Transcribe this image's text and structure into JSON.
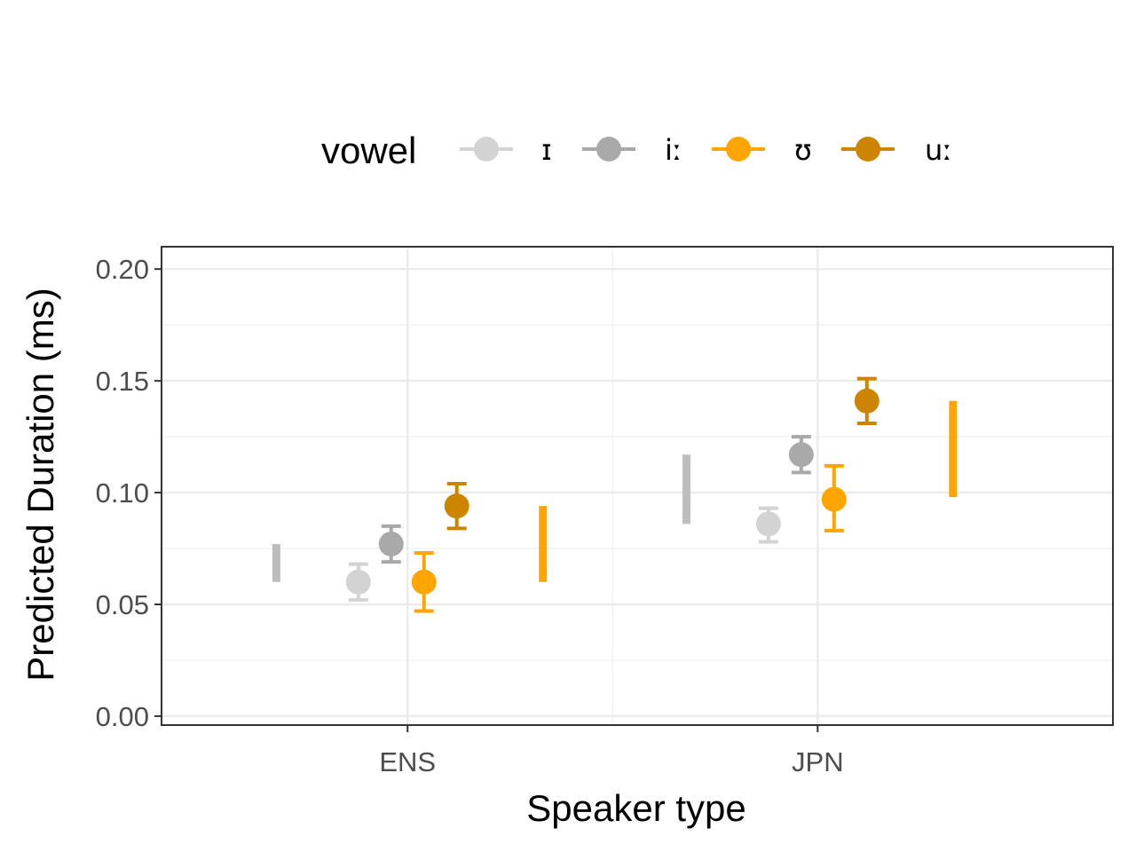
{
  "chart_data": {
    "type": "scatter",
    "xlabel": "Speaker type",
    "ylabel": "Predicted Duration (ms)",
    "categories": [
      "ENS",
      "JPN"
    ],
    "ylim": [
      -0.004,
      0.21
    ],
    "yticks": [
      "0.00",
      "0.05",
      "0.10",
      "0.15",
      "0.20"
    ],
    "grid": true,
    "legend": {
      "title": "vowel",
      "position": "top"
    },
    "series": [
      {
        "name": "ɪ",
        "color": "#d3d3d3",
        "values": [
          0.06,
          0.086
        ],
        "lower": [
          0.052,
          0.078
        ],
        "upper": [
          0.068,
          0.093
        ],
        "offset": -0.12
      },
      {
        "name": "iː",
        "color": "#a9a9a9",
        "values": [
          0.077,
          0.117
        ],
        "lower": [
          0.069,
          0.109
        ],
        "upper": [
          0.085,
          0.125
        ],
        "offset": -0.04
      },
      {
        "name": "ʊ",
        "color": "#ffa500",
        "values": [
          0.06,
          0.097
        ],
        "lower": [
          0.047,
          0.083
        ],
        "upper": [
          0.073,
          0.112
        ],
        "offset": 0.04
      },
      {
        "name": "uː",
        "color": "#cd8500",
        "values": [
          0.094,
          0.141
        ],
        "lower": [
          0.084,
          0.131
        ],
        "upper": [
          0.104,
          0.151
        ],
        "offset": 0.12
      }
    ],
    "extra_bars": [
      {
        "color": "#bdbdbd",
        "lower": [
          0.06,
          0.086
        ],
        "upper": [
          0.077,
          0.117
        ],
        "offset": -0.32
      },
      {
        "color": "#ffa500",
        "lower": [
          0.06,
          0.098
        ],
        "upper": [
          0.094,
          0.141
        ],
        "offset": 0.33
      }
    ]
  }
}
